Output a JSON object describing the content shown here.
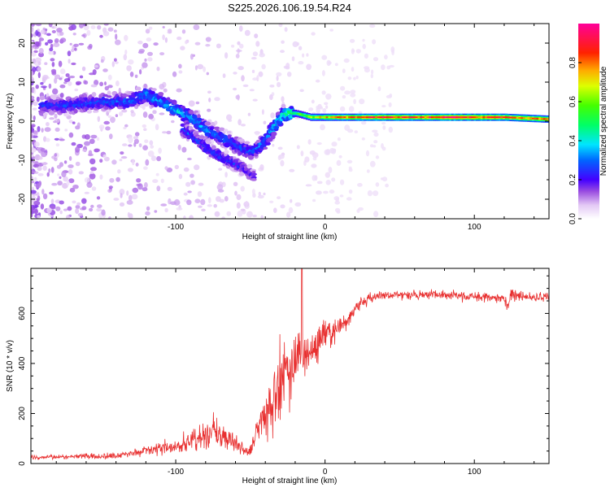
{
  "title": "S225.2026.106.19.54.R24",
  "chart_data": [
    {
      "type": "heatmap",
      "name": "spectrogram",
      "xlabel": "Height of straight line (km)",
      "ylabel": "Frequency (Hz)",
      "xlim": [
        -197,
        150
      ],
      "ylim": [
        -25,
        25
      ],
      "xticks": [
        -100,
        0,
        100
      ],
      "yticks": [
        -20,
        -10,
        0,
        10,
        20
      ],
      "colorbar": {
        "label": "Normalized spectral amplitude",
        "range": [
          0,
          1
        ],
        "ticks": [
          0.0,
          0.2,
          0.4,
          0.6,
          0.8
        ]
      },
      "ridge": {
        "x": [
          -190,
          -170,
          -150,
          -130,
          -120,
          -110,
          -100,
          -90,
          -80,
          -70,
          -60,
          -50,
          -45,
          -40,
          -35,
          -30,
          -25,
          -20,
          -10,
          0,
          20,
          40,
          60,
          80,
          100,
          120,
          150
        ],
        "y": [
          4,
          4,
          5,
          5,
          7,
          5,
          3,
          1,
          -2,
          -4,
          -6,
          -8,
          -7,
          -5,
          -2,
          1,
          2,
          2,
          1,
          1,
          1,
          1,
          1,
          1,
          1,
          1,
          0.5
        ],
        "amplitude": [
          0.25,
          0.28,
          0.3,
          0.32,
          0.35,
          0.38,
          0.4,
          0.38,
          0.35,
          0.33,
          0.3,
          0.3,
          0.32,
          0.35,
          0.38,
          0.42,
          0.5,
          0.55,
          0.65,
          0.75,
          0.85,
          0.9,
          0.85,
          0.95,
          0.9,
          0.85,
          0.8
        ]
      },
      "secondary_ridge": {
        "x": [
          -95,
          -85,
          -75,
          -65,
          -55,
          -48
        ],
        "y": [
          -2,
          -5,
          -8,
          -10,
          -12,
          -14
        ],
        "amplitude": [
          0.3,
          0.3,
          0.28,
          0.28,
          0.25,
          0.22
        ]
      }
    },
    {
      "type": "line",
      "name": "snr",
      "xlabel": "Height of straight line (km)",
      "ylabel": "SNR (10 * v/v)",
      "xlim": [
        -197,
        150
      ],
      "ylim": [
        0,
        780
      ],
      "xticks": [
        -100,
        0,
        100
      ],
      "yticks": [
        0,
        200,
        400,
        600
      ],
      "color": "#e83030",
      "series": [
        {
          "name": "SNR",
          "x": [
            -197,
            -180,
            -160,
            -140,
            -130,
            -120,
            -110,
            -100,
            -90,
            -85,
            -80,
            -75,
            -70,
            -65,
            -60,
            -55,
            -50,
            -45,
            -40,
            -35,
            -30,
            -25,
            -20,
            -15,
            -10,
            -5,
            0,
            5,
            10,
            15,
            20,
            25,
            30,
            35,
            40,
            50,
            60,
            70,
            80,
            90,
            100,
            110,
            120,
            122,
            125,
            130,
            140,
            150
          ],
          "y": [
            25,
            25,
            30,
            30,
            40,
            50,
            65,
            70,
            85,
            100,
            110,
            130,
            115,
            100,
            80,
            60,
            50,
            140,
            200,
            260,
            310,
            380,
            420,
            440,
            460,
            480,
            500,
            520,
            540,
            580,
            620,
            645,
            660,
            670,
            675,
            675,
            675,
            675,
            675,
            670,
            670,
            665,
            660,
            630,
            680,
            665,
            665,
            665
          ],
          "noise": [
            12,
            12,
            14,
            16,
            18,
            25,
            35,
            45,
            55,
            65,
            75,
            80,
            70,
            60,
            45,
            35,
            30,
            90,
            140,
            180,
            200,
            200,
            190,
            120,
            100,
            90,
            80,
            70,
            60,
            45,
            35,
            30,
            28,
            25,
            25,
            25,
            25,
            25,
            25,
            25,
            25,
            25,
            28,
            40,
            40,
            25,
            25,
            25
          ]
        }
      ]
    }
  ]
}
